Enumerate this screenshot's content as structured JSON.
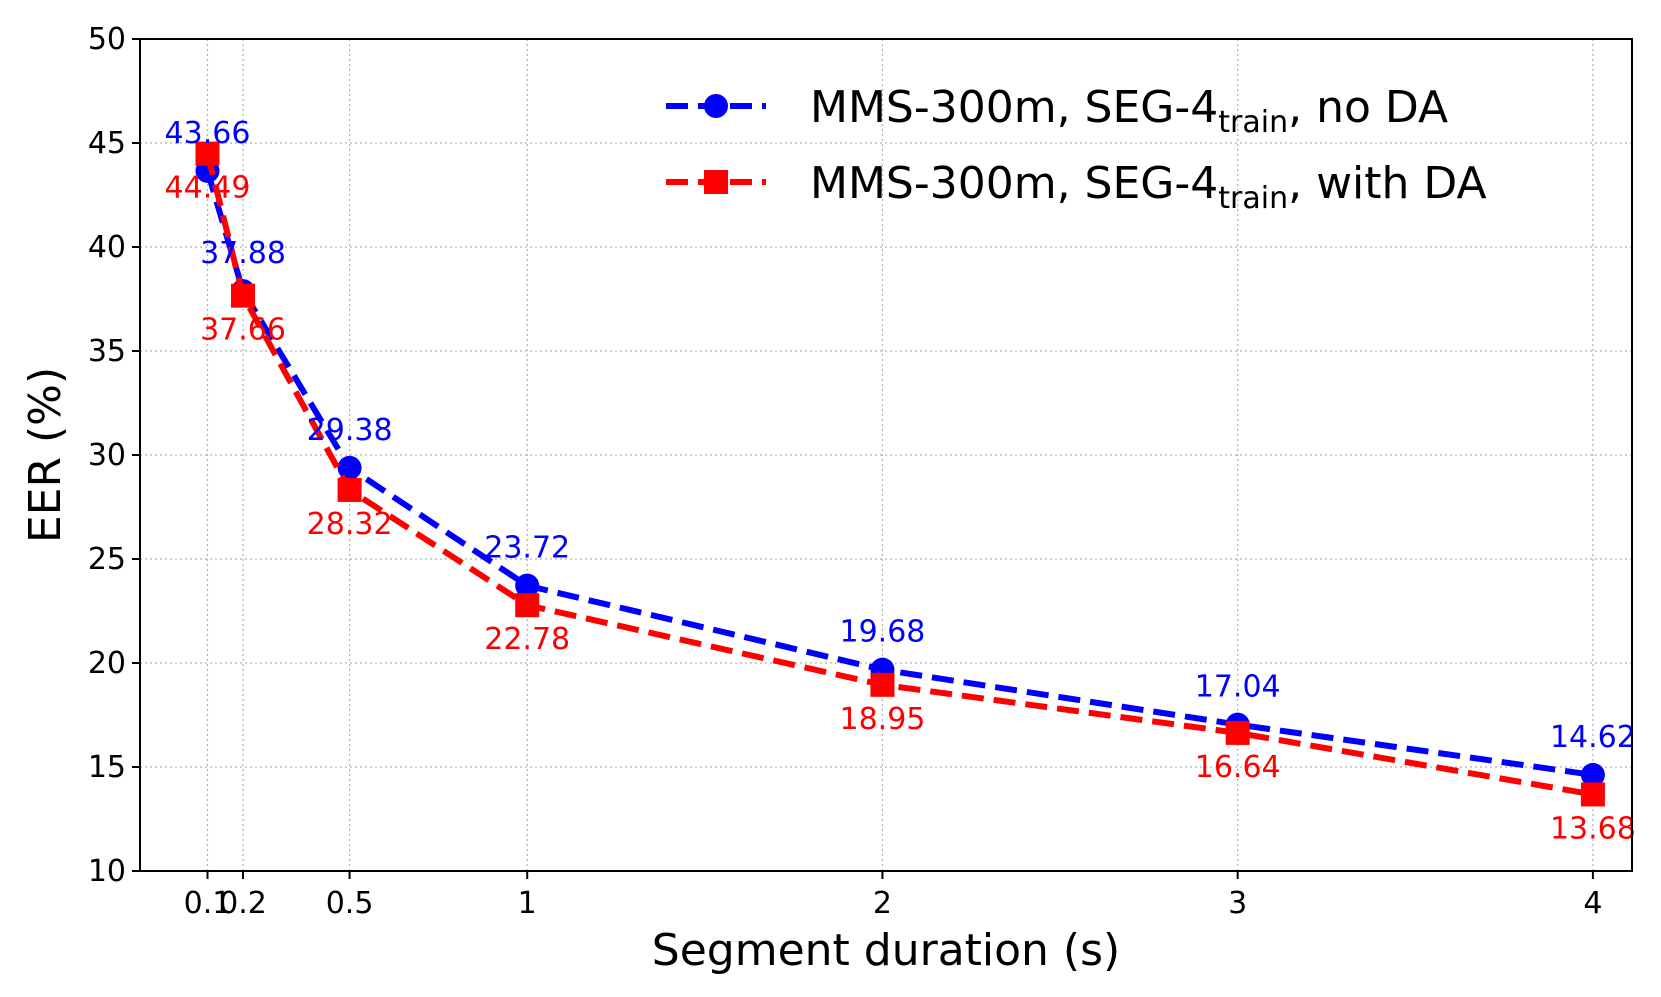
{
  "chart_data": {
    "type": "line",
    "title": "",
    "xlabel": "Segment duration (s)",
    "ylabel": "EER (%)",
    "x": [
      0.1,
      0.2,
      0.5,
      1,
      2,
      3,
      4
    ],
    "x_tick_labels": [
      "0.1",
      "0.2",
      "0.5",
      "1",
      "2",
      "3",
      "4"
    ],
    "xlim": [
      -0.09,
      4.11
    ],
    "ylim": [
      10,
      50
    ],
    "y_ticks": [
      10,
      15,
      20,
      25,
      30,
      35,
      40,
      45,
      50
    ],
    "grid": true,
    "legend_position": "top-right",
    "series": [
      {
        "name_main": "MMS-300m, SEG-4",
        "name_sub": "train",
        "name_tail": ", no DA",
        "color": "#0000ff",
        "marker": "circle",
        "linestyle": "dashed",
        "values": [
          43.66,
          37.88,
          29.38,
          23.72,
          19.68,
          17.04,
          14.62
        ],
        "labels": [
          "43.66",
          "37.88",
          "29.38",
          "23.72",
          "19.68",
          "17.04",
          "14.62"
        ]
      },
      {
        "name_main": "MMS-300m, SEG-4",
        "name_sub": "train",
        "name_tail": ", with DA",
        "color": "#ff0000",
        "marker": "square",
        "linestyle": "dashed",
        "values": [
          44.49,
          37.66,
          28.32,
          22.78,
          18.95,
          16.64,
          13.68
        ],
        "labels": [
          "44.49",
          "37.66",
          "28.32",
          "22.78",
          "18.95",
          "16.64",
          "13.68"
        ]
      }
    ]
  }
}
